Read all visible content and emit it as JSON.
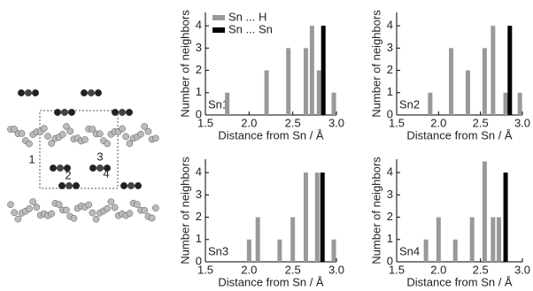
{
  "structure": {
    "labels": [
      "1",
      "2",
      "3",
      "4"
    ]
  },
  "chart_data": [
    {
      "type": "bar",
      "panel_label": "Sn1",
      "x_label": "Distance from Sn / Å",
      "y_label": "Number of neighbors",
      "x": [
        1.75,
        2.2,
        2.45,
        2.65,
        2.72,
        2.8,
        2.85,
        2.97
      ],
      "series": [
        {
          "name": "Sn ... H",
          "color": "#999999",
          "values": [
            1,
            2,
            3,
            3,
            4,
            2,
            null,
            1
          ]
        },
        {
          "name": "Sn ... Sn",
          "color": "#000000",
          "values": [
            null,
            null,
            null,
            null,
            null,
            null,
            4,
            null
          ]
        }
      ],
      "xlim": [
        1.5,
        3.0
      ],
      "ylim": [
        0,
        4.6
      ],
      "xticks": [
        1.5,
        {
          "value": 2,
          "label": "2.0"
        },
        2.5,
        {
          "value": 3,
          "label": "3.0"
        }
      ],
      "yticks": [
        0,
        1,
        2,
        3,
        4
      ],
      "legend": "top-left"
    },
    {
      "type": "bar",
      "panel_label": "Sn2",
      "x_label": "Distance from Sn / Å",
      "y_label": "Number of neighbors",
      "x": [
        1.9,
        2.15,
        2.35,
        2.55,
        2.65,
        2.8,
        2.85,
        2.97
      ],
      "series": [
        {
          "name": "Sn ... H",
          "color": "#999999",
          "values": [
            1,
            3,
            2,
            3,
            4,
            1,
            null,
            1
          ]
        },
        {
          "name": "Sn ... Sn",
          "color": "#000000",
          "values": [
            null,
            null,
            null,
            null,
            null,
            null,
            4,
            null
          ]
        }
      ],
      "xlim": [
        1.5,
        3.0
      ],
      "ylim": [
        0,
        4.6
      ],
      "xticks": [
        1.5,
        {
          "value": 2,
          "label": "2.0"
        },
        2.5,
        {
          "value": 3,
          "label": "3.0"
        }
      ],
      "yticks": [
        0,
        1,
        2,
        3,
        4
      ]
    },
    {
      "type": "bar",
      "panel_label": "Sn3",
      "x_label": "Distance from Sn / Å",
      "y_label": "Number of neighbors",
      "x": [
        2.0,
        2.1,
        2.35,
        2.5,
        2.65,
        2.78,
        2.84,
        2.97
      ],
      "series": [
        {
          "name": "Sn ... H",
          "color": "#999999",
          "values": [
            1,
            2,
            1,
            2,
            4,
            4,
            null,
            1
          ]
        },
        {
          "name": "Sn ... Sn",
          "color": "#000000",
          "values": [
            null,
            null,
            null,
            null,
            null,
            null,
            4,
            null
          ]
        }
      ],
      "xlim": [
        1.5,
        3.0
      ],
      "ylim": [
        0,
        4.6
      ],
      "xticks": [
        1.5,
        {
          "value": 2,
          "label": "2.0"
        },
        2.5,
        {
          "value": 3,
          "label": "3.0"
        }
      ],
      "yticks": [
        0,
        1,
        2,
        3,
        4
      ]
    },
    {
      "type": "bar",
      "panel_label": "Sn4",
      "x_label": "Distance from Sn / Å",
      "y_label": "Number of neighbors",
      "x": [
        1.85,
        2.0,
        2.2,
        2.4,
        2.55,
        2.65,
        2.72,
        2.8
      ],
      "series": [
        {
          "name": "Sn ... H",
          "color": "#999999",
          "values": [
            1,
            2,
            1,
            2,
            4.5,
            2,
            2,
            null
          ]
        },
        {
          "name": "Sn ... Sn",
          "color": "#000000",
          "values": [
            null,
            null,
            null,
            null,
            null,
            null,
            null,
            4
          ]
        }
      ],
      "xlim": [
        1.5,
        3.0
      ],
      "ylim": [
        0,
        4.6
      ],
      "xticks": [
        1.5,
        {
          "value": 2,
          "label": "2.0"
        },
        2.5,
        {
          "value": 3,
          "label": "3.0"
        }
      ],
      "yticks": [
        0,
        1,
        2,
        3,
        4
      ]
    }
  ]
}
